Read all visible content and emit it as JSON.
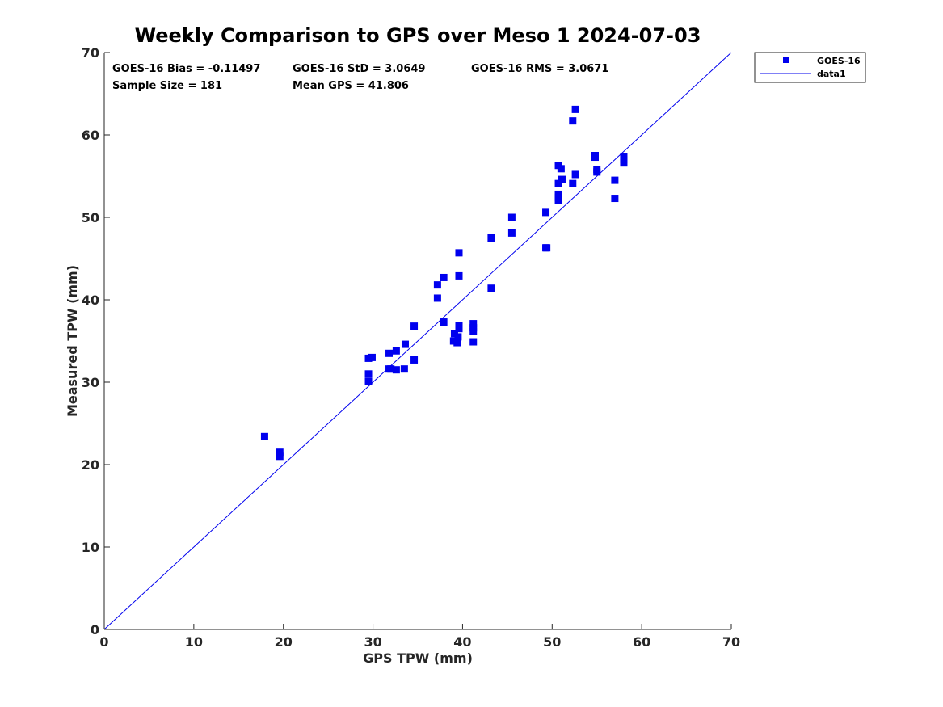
{
  "chart_data": {
    "type": "scatter",
    "title": "Weekly Comparison to GPS over Meso 1 2024-07-03",
    "xlabel": "GPS TPW (mm)",
    "ylabel": "Measured TPW (mm)",
    "xlim": [
      0,
      70
    ],
    "ylim": [
      0,
      70
    ],
    "xticks": [
      "0",
      "10",
      "20",
      "30",
      "40",
      "50",
      "60",
      "70"
    ],
    "yticks": [
      "0",
      "10",
      "20",
      "30",
      "40",
      "50",
      "60",
      "70"
    ],
    "grid": false,
    "legend_position": "outside top-right",
    "stats": [
      "GOES-16 Bias = -0.11497",
      "GOES-16 StD = 3.0649",
      "GOES-16 RMS = 3.0671",
      "Sample Size = 181",
      "Mean GPS = 41.806"
    ],
    "series": [
      {
        "name": "GOES-16",
        "kind": "scatter",
        "marker": "square",
        "color": "#0000ee",
        "points": [
          [
            17.9,
            23.4
          ],
          [
            19.6,
            21.5
          ],
          [
            19.6,
            21.0
          ],
          [
            29.5,
            32.9
          ],
          [
            29.9,
            33.0
          ],
          [
            29.5,
            31.0
          ],
          [
            29.5,
            30.1
          ],
          [
            31.8,
            33.5
          ],
          [
            32.6,
            33.8
          ],
          [
            31.8,
            31.6
          ],
          [
            32.0,
            31.6
          ],
          [
            32.6,
            31.5
          ],
          [
            33.5,
            31.6
          ],
          [
            33.6,
            34.6
          ],
          [
            34.6,
            36.8
          ],
          [
            34.6,
            32.7
          ],
          [
            37.2,
            41.8
          ],
          [
            37.2,
            40.2
          ],
          [
            37.9,
            42.7
          ],
          [
            37.9,
            37.3
          ],
          [
            39.1,
            35.9
          ],
          [
            39.0,
            35.0
          ],
          [
            39.4,
            35.0
          ],
          [
            39.4,
            34.8
          ],
          [
            39.5,
            35.5
          ],
          [
            39.6,
            45.7
          ],
          [
            39.6,
            42.9
          ],
          [
            39.6,
            36.9
          ],
          [
            39.6,
            36.5
          ],
          [
            41.2,
            37.1
          ],
          [
            41.2,
            36.6
          ],
          [
            41.2,
            36.2
          ],
          [
            41.2,
            34.9
          ],
          [
            43.2,
            47.5
          ],
          [
            43.2,
            41.4
          ],
          [
            45.5,
            50.0
          ],
          [
            45.5,
            48.1
          ],
          [
            49.3,
            50.6
          ],
          [
            49.3,
            46.3
          ],
          [
            49.4,
            46.3
          ],
          [
            50.7,
            56.3
          ],
          [
            51.0,
            55.9
          ],
          [
            51.1,
            54.6
          ],
          [
            50.7,
            54.1
          ],
          [
            50.7,
            52.8
          ],
          [
            50.7,
            52.4
          ],
          [
            50.7,
            52.1
          ],
          [
            52.3,
            61.7
          ],
          [
            52.6,
            63.1
          ],
          [
            52.6,
            55.2
          ],
          [
            52.3,
            54.1
          ],
          [
            54.8,
            57.5
          ],
          [
            54.8,
            57.3
          ],
          [
            55.0,
            55.8
          ],
          [
            55.0,
            55.5
          ],
          [
            57.0,
            54.5
          ],
          [
            57.0,
            52.3
          ],
          [
            58.0,
            57.4
          ],
          [
            58.0,
            57.0
          ],
          [
            58.0,
            56.6
          ]
        ]
      },
      {
        "name": "data1",
        "kind": "line",
        "color": "#0000ee",
        "points": [
          [
            0,
            0
          ],
          [
            70,
            70
          ]
        ]
      }
    ]
  }
}
